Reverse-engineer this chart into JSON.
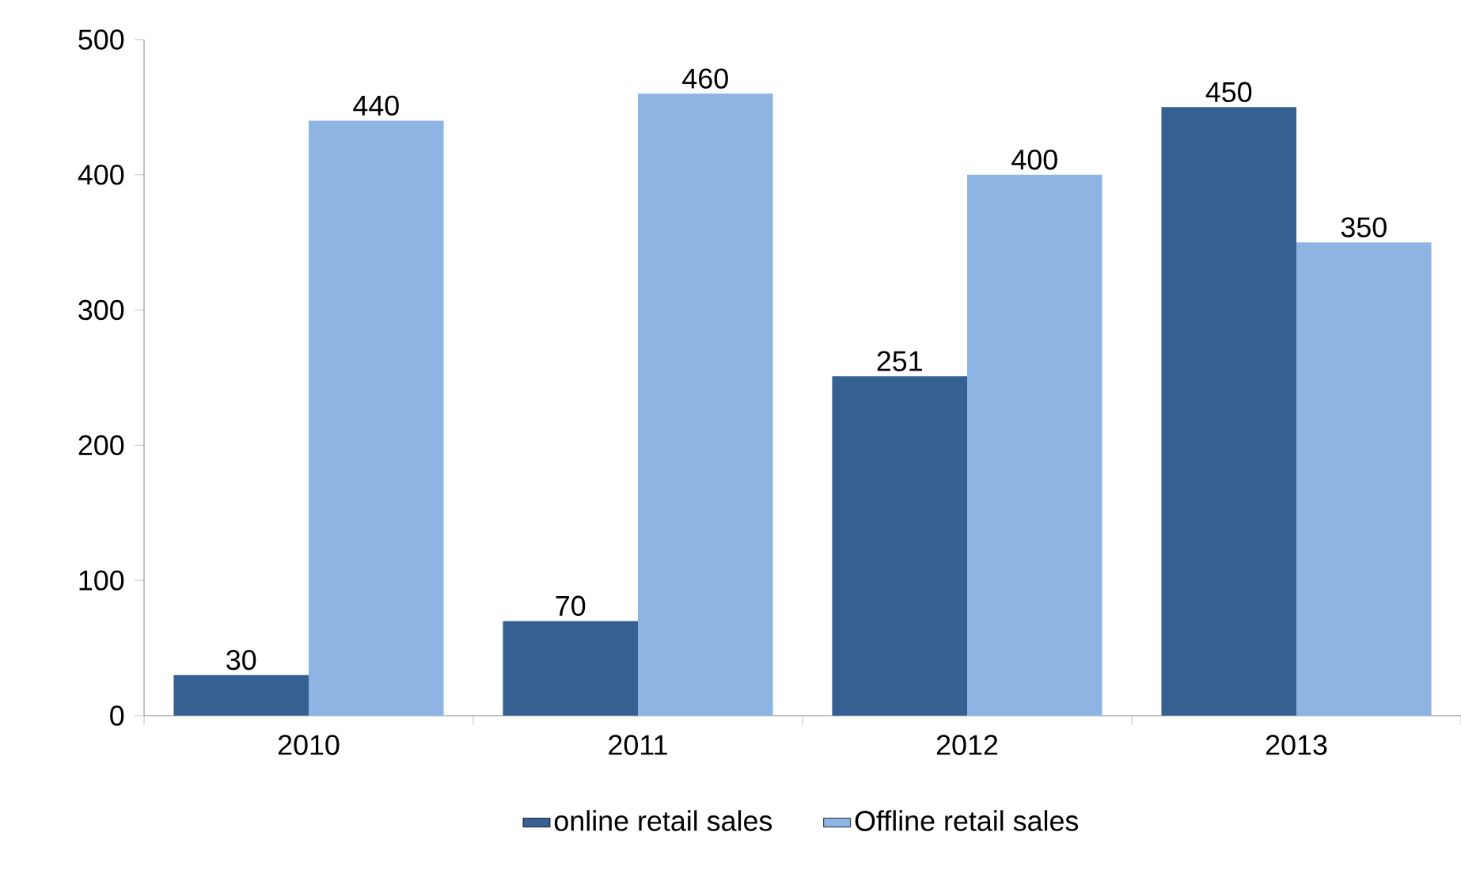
{
  "chart_data": {
    "type": "bar",
    "categories": [
      "2010",
      "2011",
      "2012",
      "2013"
    ],
    "series": [
      {
        "name": "online retail sales",
        "color": "#376092",
        "values": [
          30,
          70,
          251,
          450
        ]
      },
      {
        "name": "Offline retail sales",
        "color": "#8db4e2",
        "values": [
          440,
          460,
          400,
          350
        ]
      }
    ],
    "ylim": [
      0,
      500
    ],
    "yticks": [
      0,
      100,
      200,
      300,
      400,
      500
    ],
    "data_labels": true,
    "legend": "bottom",
    "grid": false
  }
}
